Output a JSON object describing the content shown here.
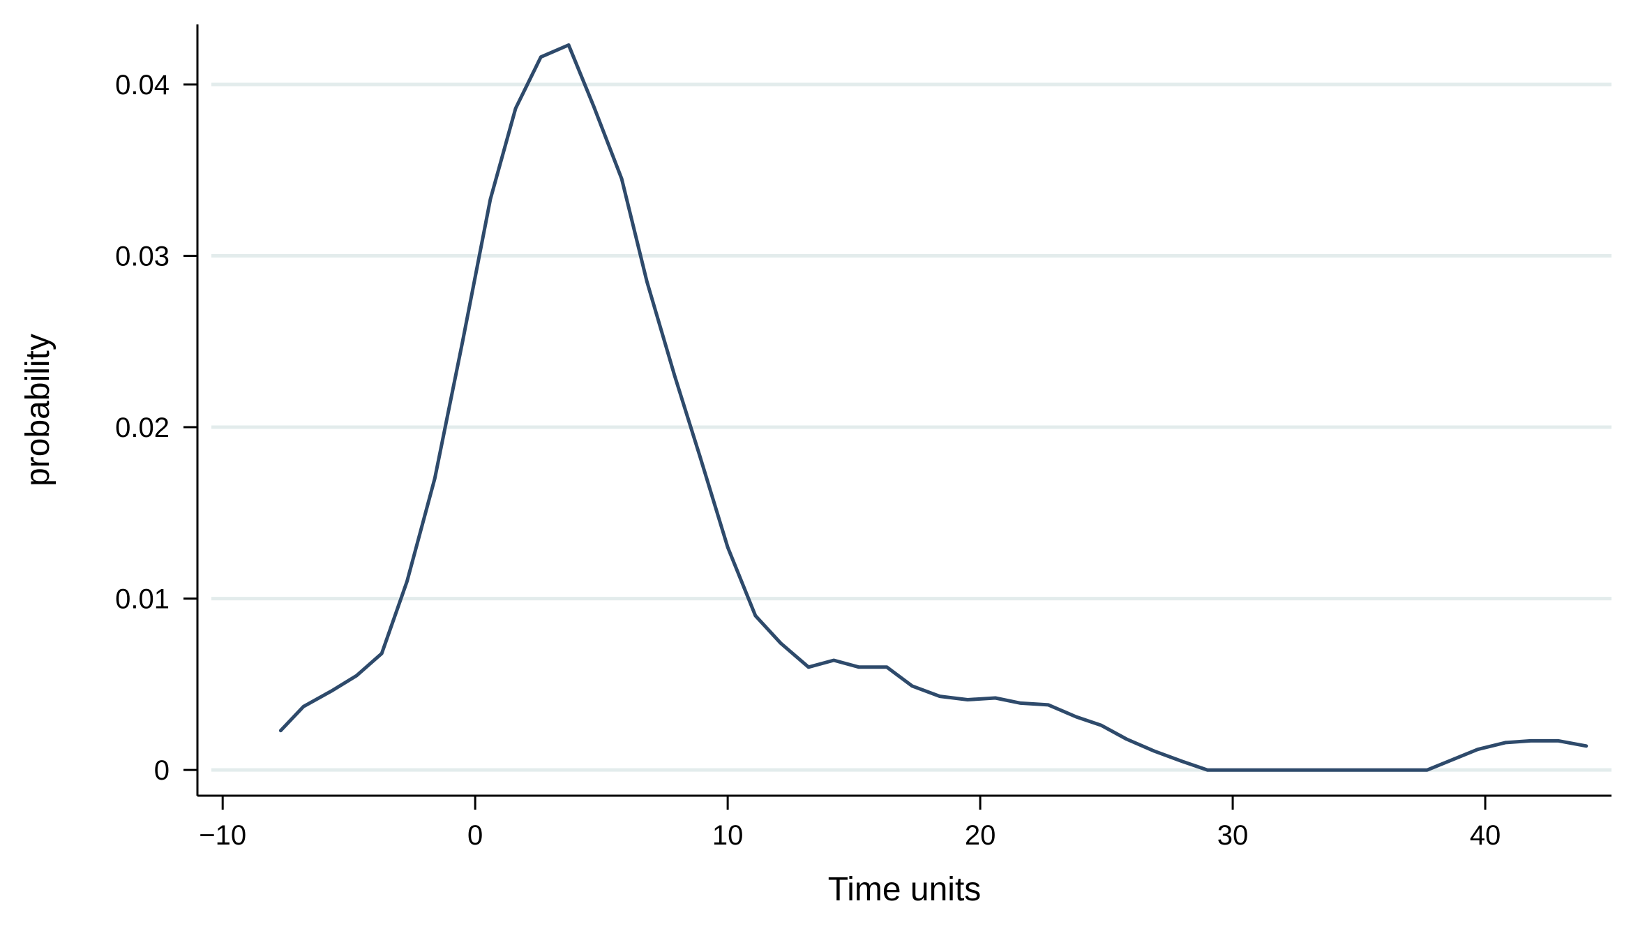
{
  "chart_data": {
    "type": "line",
    "title": "",
    "xlabel": "Time units",
    "ylabel": "probability",
    "xlim": [
      -11,
      45
    ],
    "ylim": [
      -0.0015,
      0.0435
    ],
    "x_ticks": [
      -10,
      0,
      10,
      20,
      30,
      40
    ],
    "x_tick_labels": [
      "−10",
      "0",
      "10",
      "20",
      "30",
      "40"
    ],
    "y_ticks": [
      0,
      0.01,
      0.02,
      0.03,
      0.04
    ],
    "y_tick_labels": [
      "0",
      "0.01",
      "0.02",
      "0.03",
      "0.04"
    ],
    "grid": "horizontal",
    "legend": "none",
    "colors": {
      "line": "#2e4a6b",
      "grid": "#e3ecec",
      "axis": "#000000"
    },
    "series": [
      {
        "x": [
          -7.7,
          -6.8,
          -5.7,
          -4.7,
          -3.7,
          -2.7,
          -1.6,
          -0.5,
          0.6,
          1.6,
          2.6,
          3.7,
          4.7,
          5.8,
          6.8,
          7.9,
          8.9,
          10,
          11.1,
          12.1,
          13.2,
          14.2,
          15.2,
          16.3,
          17.3,
          18.4,
          19.5,
          20.6,
          21.6,
          22.7,
          23.8,
          24.8,
          25.8,
          26.9,
          28,
          29,
          30,
          35,
          37.7,
          38.7,
          39.7,
          40.8,
          41.8,
          42.9,
          44
        ],
        "y": [
          0.0023,
          0.0037,
          0.0046,
          0.0055,
          0.0068,
          0.011,
          0.017,
          0.025,
          0.0333,
          0.0386,
          0.0416,
          0.0423,
          0.0387,
          0.0345,
          0.0285,
          0.023,
          0.0183,
          0.013,
          0.009,
          0.0074,
          0.006,
          0.0064,
          0.006,
          0.006,
          0.0049,
          0.0043,
          0.0041,
          0.0042,
          0.0039,
          0.0038,
          0.0031,
          0.0026,
          0.0018,
          0.0011,
          0.0005,
          0.0,
          0.0,
          0.0,
          0.0,
          0.0006,
          0.0012,
          0.0016,
          0.0017,
          0.0017,
          0.0014
        ]
      }
    ]
  }
}
